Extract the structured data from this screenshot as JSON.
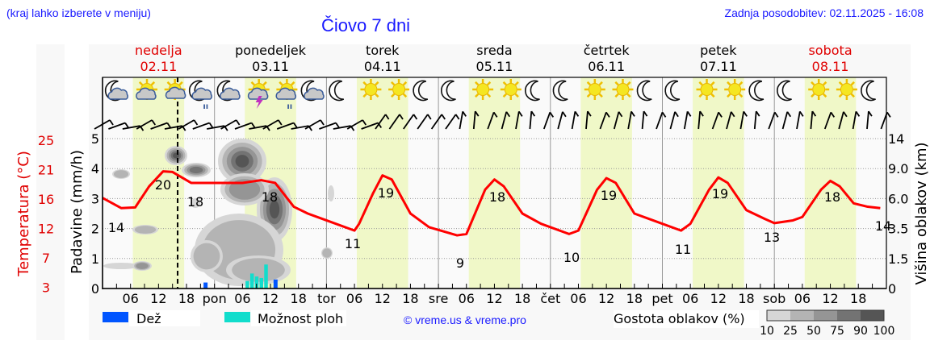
{
  "header": {
    "menu_hint": "(kraj lahko izberete v meniju)",
    "title": "Čiovo 7 dni",
    "last_update": "Zadnja posodobitev: 02.11.2025 - 16:08"
  },
  "days": [
    {
      "name": "nedelja",
      "date": "02.11",
      "color": "#e00000",
      "short": ""
    },
    {
      "name": "ponedeljek",
      "date": "03.11",
      "color": "#000000",
      "short": "pon"
    },
    {
      "name": "torek",
      "date": "04.11",
      "color": "#000000",
      "short": "tor"
    },
    {
      "name": "sreda",
      "date": "05.11",
      "color": "#000000",
      "short": "sre"
    },
    {
      "name": "četrtek",
      "date": "06.11",
      "color": "#000000",
      "short": "čet"
    },
    {
      "name": "petek",
      "date": "07.11",
      "color": "#000000",
      "short": "pet"
    },
    {
      "name": "sobota",
      "date": "08.11",
      "color": "#e00000",
      "short": "sob"
    }
  ],
  "axes": {
    "temp_label": "Temperatura (°C)",
    "temp_ticks": [
      "25",
      "21",
      "16",
      "12",
      "7",
      "3"
    ],
    "precip_label": "Padavine (mm/h)",
    "precip_ticks": [
      "5",
      "4",
      "3",
      "2",
      "1",
      "0"
    ],
    "cloud_label": "Višina oblakov (km)",
    "cloud_ticks": [
      "14",
      "9.0",
      "6.0",
      "3.5",
      "1.5",
      "0"
    ],
    "hour_ticks": [
      "06",
      "12",
      "18"
    ]
  },
  "legend": {
    "rain": "Dež",
    "showers": "Možnost ploh",
    "copyright": "© vreme.us & vreme.pro",
    "cloud_density": "Gostota oblakov (%)",
    "cloud_scale": [
      "10",
      "25",
      "50",
      "75",
      "90",
      "100"
    ]
  },
  "colors": {
    "temperature": "#ff0000",
    "rain": "#0055ff",
    "showers": "#11ddcc",
    "daylight": "#f0f8c8",
    "accent_blue": "#1a1aff"
  },
  "icons": [
    "moon-cloud",
    "sun-cloud",
    "sun-cloud-small",
    "moon-cloud-rain",
    "moon-cloud",
    "sun-storm",
    "sun-cloud-rain",
    "moon-cloud",
    "moon",
    "sun",
    "sun",
    "moon",
    "moon",
    "sun",
    "sun",
    "moon",
    "moon",
    "sun",
    "sun",
    "moon",
    "moon",
    "sun",
    "sun",
    "moon",
    "moon",
    "sun",
    "sun",
    "moon"
  ],
  "chart_data": {
    "type": "line",
    "title": "Čiovo 7 dni",
    "xlabel": "",
    "ylabel": "Temperatura (°C)",
    "ylim": [
      3,
      25
    ],
    "secondary_axes": [
      {
        "label": "Padavine (mm/h)",
        "range": [
          0,
          5
        ]
      },
      {
        "label": "Višina oblakov (km)",
        "ticks": [
          0,
          1.5,
          3.5,
          6.0,
          9.0,
          14
        ]
      }
    ],
    "series": [
      {
        "name": "Temperatura",
        "labels": [
          {
            "day": "nedelja",
            "time": "min",
            "value": 14
          },
          {
            "day": "nedelja",
            "time": "max",
            "value": 20
          },
          {
            "day": "nedelja",
            "time": "evening",
            "value": 18
          },
          {
            "day": "ponedeljek",
            "time": "max",
            "value": 18
          },
          {
            "day": "torek",
            "time": "min",
            "value": 11
          },
          {
            "day": "torek",
            "time": "max",
            "value": 19
          },
          {
            "day": "sreda",
            "time": "min",
            "value": 9
          },
          {
            "day": "sreda",
            "time": "max",
            "value": 18
          },
          {
            "day": "četrtek",
            "time": "min",
            "value": 10
          },
          {
            "day": "četrtek",
            "time": "max",
            "value": 19
          },
          {
            "day": "petek",
            "time": "min",
            "value": 11
          },
          {
            "day": "petek",
            "time": "max",
            "value": 19
          },
          {
            "day": "sobota",
            "time": "min",
            "value": 13
          },
          {
            "day": "sobota",
            "time": "max",
            "value": 18
          },
          {
            "day": "sobota",
            "time": "end",
            "value": 14
          }
        ]
      },
      {
        "name": "Dež (mm/h)",
        "points": [
          {
            "day": "nedelja",
            "hour": 22,
            "value": 0.2
          },
          {
            "day": "ponedeljek",
            "hour": 13,
            "value": 0.3
          }
        ]
      },
      {
        "name": "Možnost ploh (mm/h)",
        "points": [
          {
            "day": "ponedeljek",
            "hour": 7,
            "value": 0.25
          },
          {
            "day": "ponedeljek",
            "hour": 8,
            "value": 0.5
          },
          {
            "day": "ponedeljek",
            "hour": 9,
            "value": 0.4
          },
          {
            "day": "ponedeljek",
            "hour": 10,
            "value": 0.35
          },
          {
            "day": "ponedeljek",
            "hour": 11,
            "value": 0.8
          }
        ]
      }
    ],
    "legend_position": "bottom",
    "grid": true
  }
}
